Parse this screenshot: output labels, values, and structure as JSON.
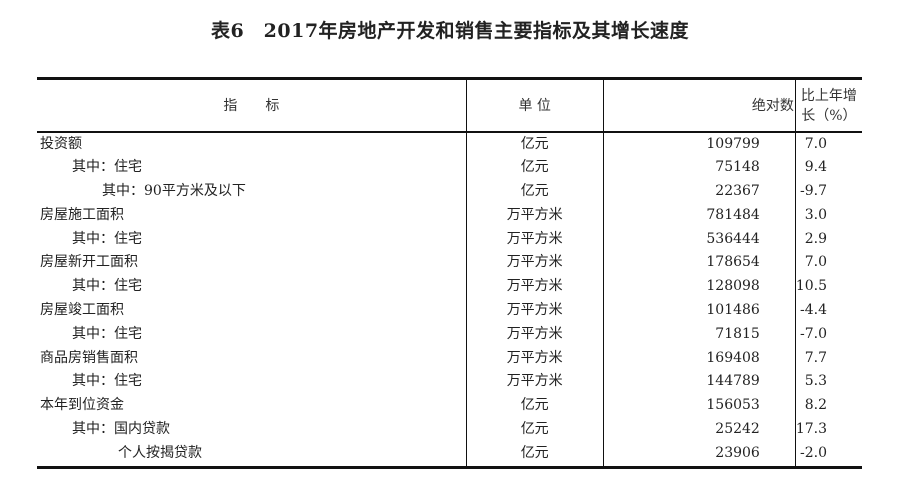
{
  "title": "表6　2017年房地产开发和销售主要指标及其增长速度",
  "headers": [
    "指　　标",
    "单 位",
    "绝对数",
    "比上年增长（%）"
  ],
  "rows": [
    {
      "indicator": "投资额",
      "level": 0,
      "unit": "亿元",
      "value": "109799",
      "growth": "7.0"
    },
    {
      "indicator": "其中：住宅",
      "level": 1,
      "unit": "亿元",
      "value": "75148",
      "growth": "9.4"
    },
    {
      "indicator": "其中：90平方米及以下",
      "level": 2,
      "unit": "亿元",
      "value": "22367",
      "growth": "-9.7"
    },
    {
      "indicator": "房屋施工面积",
      "level": 0,
      "unit": "万平方米",
      "value": "781484",
      "growth": "3.0"
    },
    {
      "indicator": "其中：住宅",
      "level": 1,
      "unit": "万平方米",
      "value": "536444",
      "growth": "2.9"
    },
    {
      "indicator": "房屋新开工面积",
      "level": 0,
      "unit": "万平方米",
      "value": "178654",
      "growth": "7.0"
    },
    {
      "indicator": "其中：住宅",
      "level": 1,
      "unit": "万平方米",
      "value": "128098",
      "growth": "10.5"
    },
    {
      "indicator": "房屋竣工面积",
      "level": 0,
      "unit": "万平方米",
      "value": "101486",
      "growth": "-4.4"
    },
    {
      "indicator": "其中：住宅",
      "level": 1,
      "unit": "万平方米",
      "value": "71815",
      "growth": "-7.0"
    },
    {
      "indicator": "商品房销售面积",
      "level": 0,
      "unit": "万平方米",
      "value": "169408",
      "growth": "7.7"
    },
    {
      "indicator": "其中：住宅",
      "level": 1,
      "unit": "万平方米",
      "value": "144789",
      "growth": "5.3"
    },
    {
      "indicator": "本年到位资金",
      "level": 0,
      "unit": "亿元",
      "value": "156053",
      "growth": "8.2"
    },
    {
      "indicator": "其中：国内贷款",
      "level": 1,
      "unit": "亿元",
      "value": "25242",
      "growth": "17.3"
    },
    {
      "indicator": "个人按揭贷款",
      "level": 3,
      "unit": "亿元",
      "value": "23906",
      "growth": "-2.0"
    }
  ]
}
